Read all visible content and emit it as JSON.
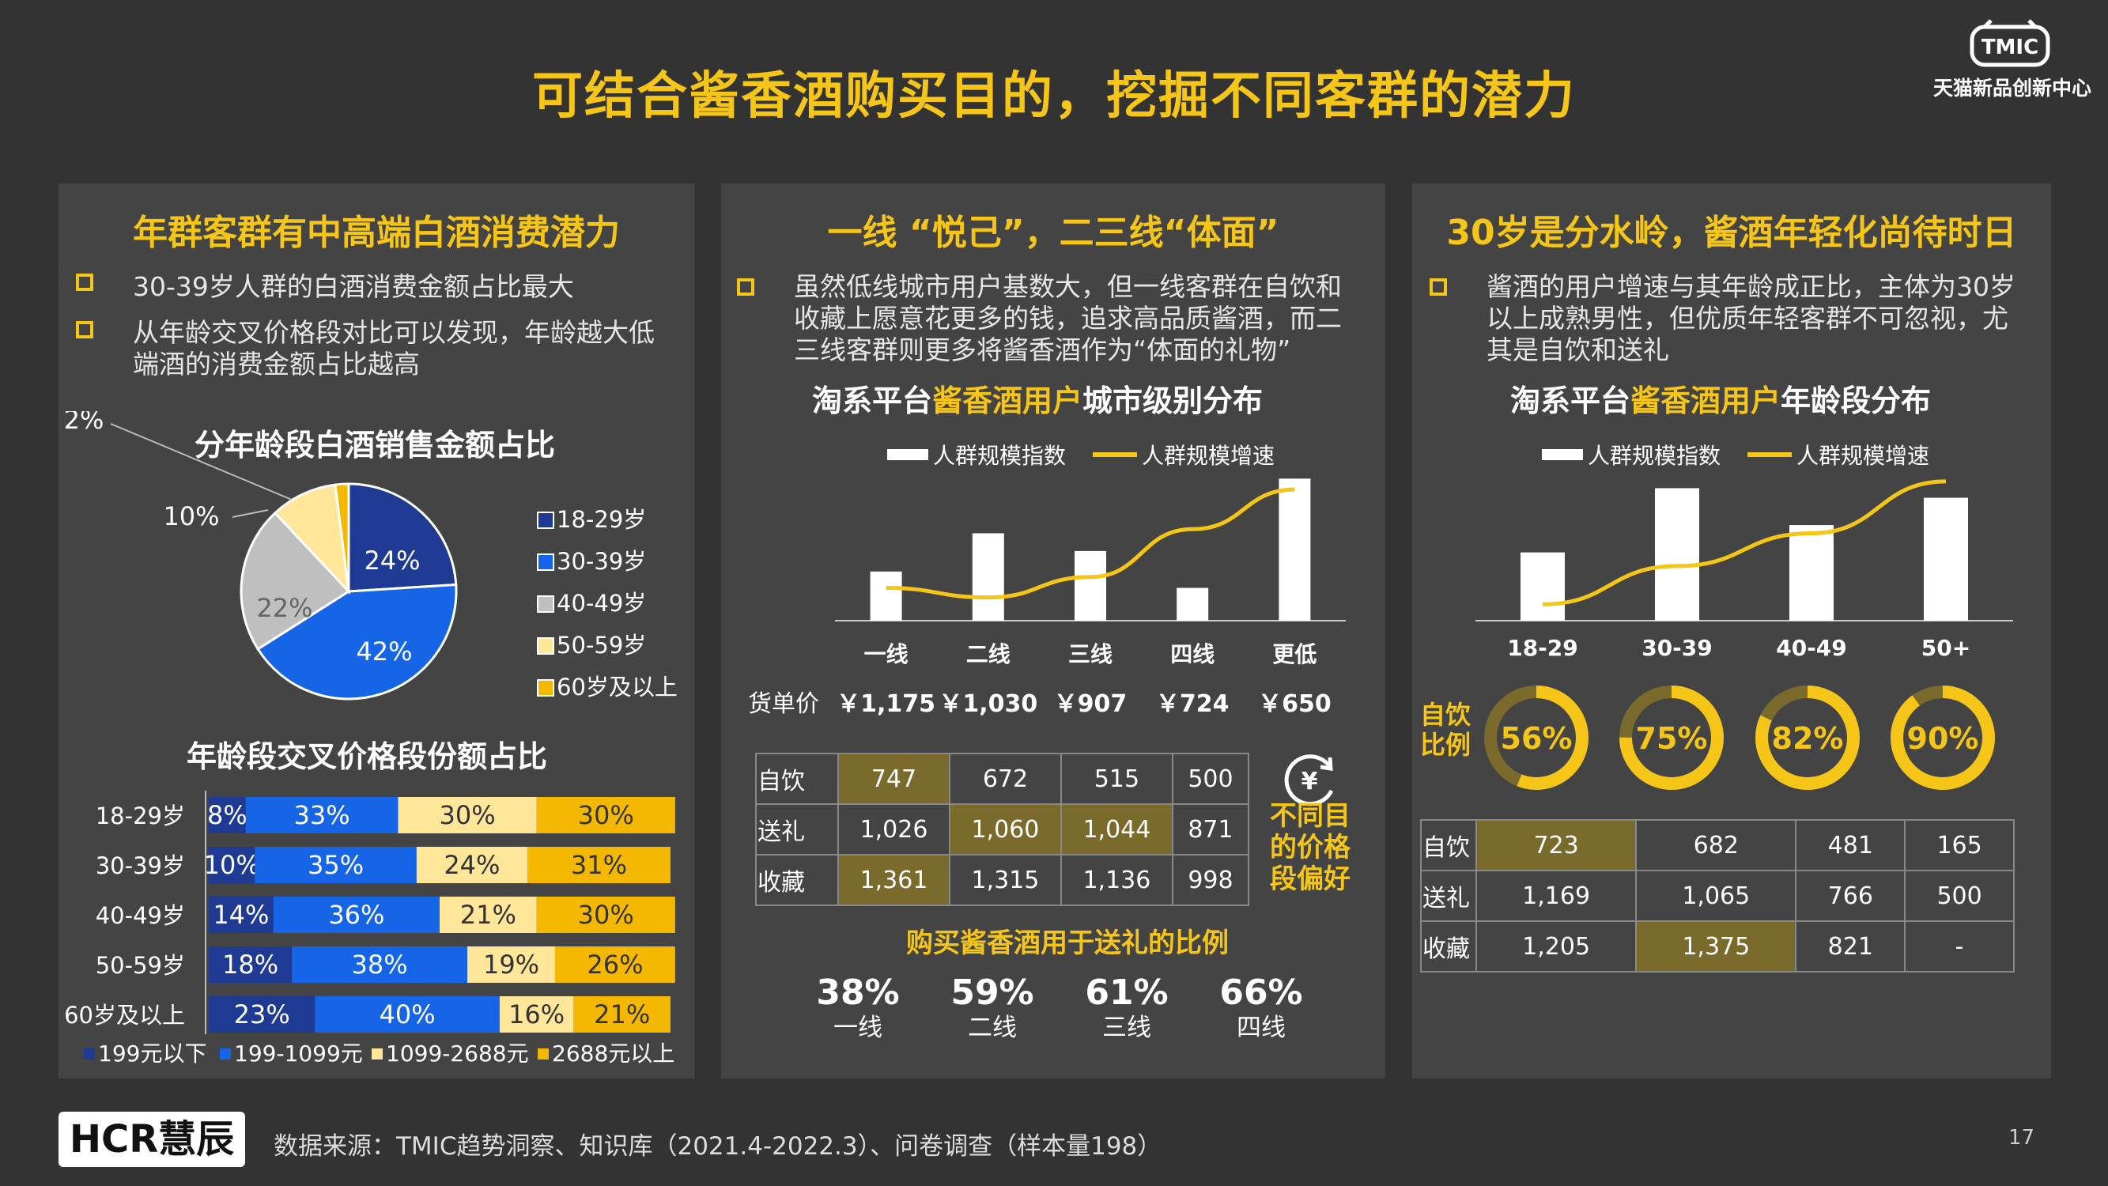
{
  "page": {
    "title": "可结合酱香酒购买目的，挖掘不同客群的潜力",
    "brand_logo": "TMIC",
    "brand_name": "天猫新品创新中心",
    "source": "数据来源：TMIC趋势洞察、知识库（2021.4-2022.3）、问卷调查（样本量198）",
    "page_number": "17",
    "footer_logo": "HCR慧辰"
  },
  "panel1": {
    "title": "年群客群有中高端白酒消费潜力",
    "bullets": [
      "30-39岁人群的白酒消费金额占比最大",
      "从年龄交叉价格段对比可以发现，年龄越大低端酒的消费金额占比越高"
    ]
  },
  "panel2": {
    "title": "一线 “悦己”，二三线“体面”",
    "bullets": [
      "虽然低线城市用户基数大，但一线客群在自饮和收藏上愿意花更多的钱，追求高品质酱酒，而二三线客群则更多将酱香酒作为“体面的礼物”"
    ],
    "side_note": "不同目的价格段偏好",
    "side_icon": "yen-cycle-icon"
  },
  "panel3": {
    "title": "30岁是分水岭，酱酒年轻化尚待时日",
    "bullets": [
      "酱酒的用户增速与其年龄成正比，主体为30岁以上成熟男性，但优质年轻客群不可忽视，尤其是自饮和送礼"
    ]
  },
  "colors": {
    "accent": "#F5C518",
    "bg": "#333333",
    "panel": "#444444",
    "navy": "#1F3A93",
    "blue": "#1565E6",
    "gray": "#BFBFBF",
    "cream": "#FFE699",
    "gold": "#F5B800",
    "olive": "#7A6A2C"
  },
  "chart_data": [
    {
      "type": "pie",
      "title": "分年龄段白酒销售金额占比",
      "slices": [
        {
          "name": "18-29岁",
          "value": 24,
          "label": "24%",
          "color": "#1F3A93"
        },
        {
          "name": "30-39岁",
          "value": 42,
          "label": "42%",
          "color": "#1565E6"
        },
        {
          "name": "40-49岁",
          "value": 22,
          "label": "22%",
          "color": "#BFBFBF"
        },
        {
          "name": "50-59岁",
          "value": 10,
          "label": "10%",
          "color": "#FFE699"
        },
        {
          "name": "60岁及以上",
          "value": 2,
          "label": "2%",
          "color": "#F5B800"
        }
      ]
    },
    {
      "type": "bar",
      "title": "年龄段交叉价格段份额占比",
      "orientation": "horizontal-stacked",
      "categories": [
        "18-29岁",
        "30-39岁",
        "40-49岁",
        "50-59岁",
        "60岁及以上"
      ],
      "series": [
        {
          "name": "199元以下",
          "color": "#1F3A93",
          "values": [
            8,
            10,
            14,
            18,
            23
          ]
        },
        {
          "name": "199-1099元",
          "color": "#1565E6",
          "values": [
            33,
            35,
            36,
            38,
            40
          ]
        },
        {
          "name": "1099-2688元",
          "color": "#FFE699",
          "values": [
            30,
            24,
            21,
            19,
            16
          ]
        },
        {
          "name": "2688元以上",
          "color": "#F5B800",
          "values": [
            30,
            31,
            30,
            26,
            21
          ]
        }
      ]
    },
    {
      "type": "bar",
      "title_parts": [
        "淘系平台",
        "酱香酒用户",
        "城市级别分布"
      ],
      "categories": [
        "一线",
        "二线",
        "三线",
        "四线",
        "更低"
      ],
      "series": [
        {
          "name": "人群规模指数",
          "type": "bar",
          "values": [
            36,
            64,
            51,
            24,
            104
          ]
        },
        {
          "name": "人群规模增速",
          "type": "line",
          "values": [
            24,
            17,
            32,
            67,
            96
          ]
        }
      ],
      "ylim": [
        0,
        110
      ],
      "price_label": "货单价",
      "prices": [
        "￥1,175",
        "￥1,030",
        "￥907",
        "￥724",
        "￥650"
      ]
    },
    {
      "type": "table",
      "rows": [
        {
          "name": "自饮",
          "values": [
            "747",
            "672",
            "515",
            "500"
          ],
          "highlight": [
            0
          ]
        },
        {
          "name": "送礼",
          "values": [
            "1,026",
            "1,060",
            "1,044",
            "871"
          ],
          "highlight": [
            1,
            2
          ]
        },
        {
          "name": "收藏",
          "values": [
            "1,361",
            "1,315",
            "1,136",
            "998"
          ],
          "highlight": [
            0
          ]
        }
      ]
    },
    {
      "type": "bar",
      "title": "购买酱香酒用于送礼的比例",
      "categories": [
        "一线",
        "二线",
        "三线",
        "四线"
      ],
      "values": [
        38,
        59,
        61,
        66
      ],
      "labels": [
        "38%",
        "59%",
        "61%",
        "66%"
      ]
    },
    {
      "type": "bar",
      "title_parts": [
        "淘系平台",
        "酱香酒用户",
        "年龄段分布"
      ],
      "categories": [
        "18-29",
        "30-39",
        "40-49",
        "50+"
      ],
      "series": [
        {
          "name": "人群规模指数",
          "type": "bar",
          "values": [
            50,
            97,
            70,
            90
          ]
        },
        {
          "name": "人群规模增速",
          "type": "line",
          "values": [
            12,
            40,
            64,
            102
          ]
        }
      ],
      "ylim": [
        0,
        110
      ]
    },
    {
      "type": "pie",
      "title": "自饮比例",
      "categories": [
        "18-29",
        "30-39",
        "40-49",
        "50+"
      ],
      "values": [
        56,
        75,
        82,
        90
      ],
      "labels": [
        "56%",
        "75%",
        "82%",
        "90%"
      ]
    },
    {
      "type": "table",
      "rows": [
        {
          "name": "自饮",
          "values": [
            "723",
            "682",
            "481",
            "165"
          ],
          "highlight": [
            0
          ]
        },
        {
          "name": "送礼",
          "values": [
            "1,169",
            "1,065",
            "766",
            "500"
          ],
          "highlight": []
        },
        {
          "name": "收藏",
          "values": [
            "1,205",
            "1,375",
            "821",
            "-"
          ],
          "highlight": [
            1
          ]
        }
      ]
    }
  ]
}
